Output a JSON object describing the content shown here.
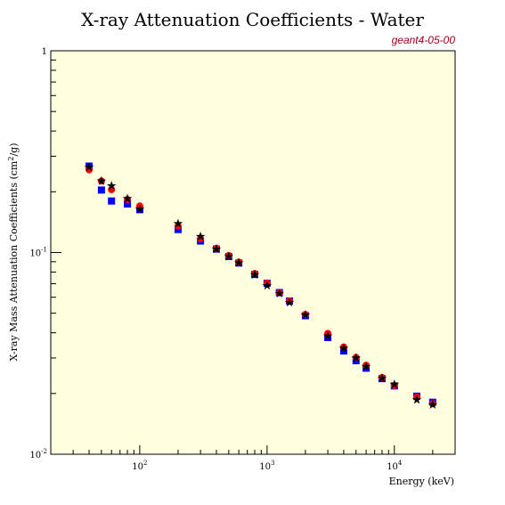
{
  "chart_data": {
    "type": "scatter",
    "title": "X-ray Attenuation Coefficients - Water",
    "tag": "geant4-05-00",
    "xlabel": "Energy (keV)",
    "ylabel_main": "X-ray Mass Attenuation Coefficients (cm",
    "ylabel_sup": "2",
    "ylabel_end": "/g)",
    "xscale": "log",
    "yscale": "log",
    "xlim": [
      20,
      30000
    ],
    "ylim": [
      0.01,
      1
    ],
    "x_ticks": [
      {
        "value": 100,
        "base": "10",
        "exp": "2"
      },
      {
        "value": 1000,
        "base": "10",
        "exp": "3"
      },
      {
        "value": 10000,
        "base": "10",
        "exp": "4"
      }
    ],
    "y_ticks": [
      {
        "value": 1,
        "label": "1",
        "base": "",
        "exp": ""
      },
      {
        "value": 0.1,
        "label": "",
        "base": "10",
        "exp": "-1"
      },
      {
        "value": 0.01,
        "label": "",
        "base": "10",
        "exp": "-2"
      }
    ],
    "plot_background": "#ffffe0",
    "series": [
      {
        "marker": "square",
        "color": "#0000ff",
        "x": [
          40,
          50,
          60,
          80,
          100,
          200,
          300,
          400,
          500,
          600,
          800,
          1000,
          1250,
          1500,
          2000,
          3000,
          4000,
          5000,
          6000,
          8000,
          10000,
          15000,
          20000
        ],
        "y": [
          0.268,
          0.204,
          0.18,
          0.174,
          0.163,
          0.13,
          0.114,
          0.104,
          0.0955,
          0.0887,
          0.0778,
          0.0704,
          0.0633,
          0.0575,
          0.0486,
          0.0379,
          0.0325,
          0.0291,
          0.0267,
          0.0237,
          0.0218,
          0.0194,
          0.0181
        ]
      },
      {
        "marker": "circle",
        "color": "#ff0000",
        "x": [
          40,
          50,
          60,
          80,
          100,
          200,
          300,
          400,
          500,
          600,
          800,
          1000,
          1250,
          1500,
          2000,
          3000,
          4000,
          5000,
          6000,
          8000,
          10000,
          15000,
          20000
        ],
        "y": [
          0.257,
          0.226,
          0.205,
          0.183,
          0.17,
          0.135,
          0.117,
          0.105,
          0.0966,
          0.0896,
          0.0786,
          0.0706,
          0.0631,
          0.0575,
          0.0493,
          0.0397,
          0.034,
          0.0302,
          0.0276,
          0.024,
          0.0219,
          0.0192,
          0.0178
        ]
      },
      {
        "marker": "star",
        "color": "#000000",
        "x": [
          40,
          50,
          60,
          80,
          100,
          200,
          300,
          400,
          500,
          600,
          800,
          1000,
          1250,
          1500,
          2000,
          3000,
          4000,
          5000,
          6000,
          8000,
          10000,
          15000,
          20000
        ],
        "y": [
          0.265,
          0.226,
          0.214,
          0.185,
          0.164,
          0.139,
          0.12,
          0.104,
          0.0956,
          0.0888,
          0.0776,
          0.0685,
          0.0626,
          0.0565,
          0.049,
          0.0385,
          0.0335,
          0.03,
          0.0272,
          0.0238,
          0.0222,
          0.0186,
          0.0176
        ]
      }
    ]
  }
}
